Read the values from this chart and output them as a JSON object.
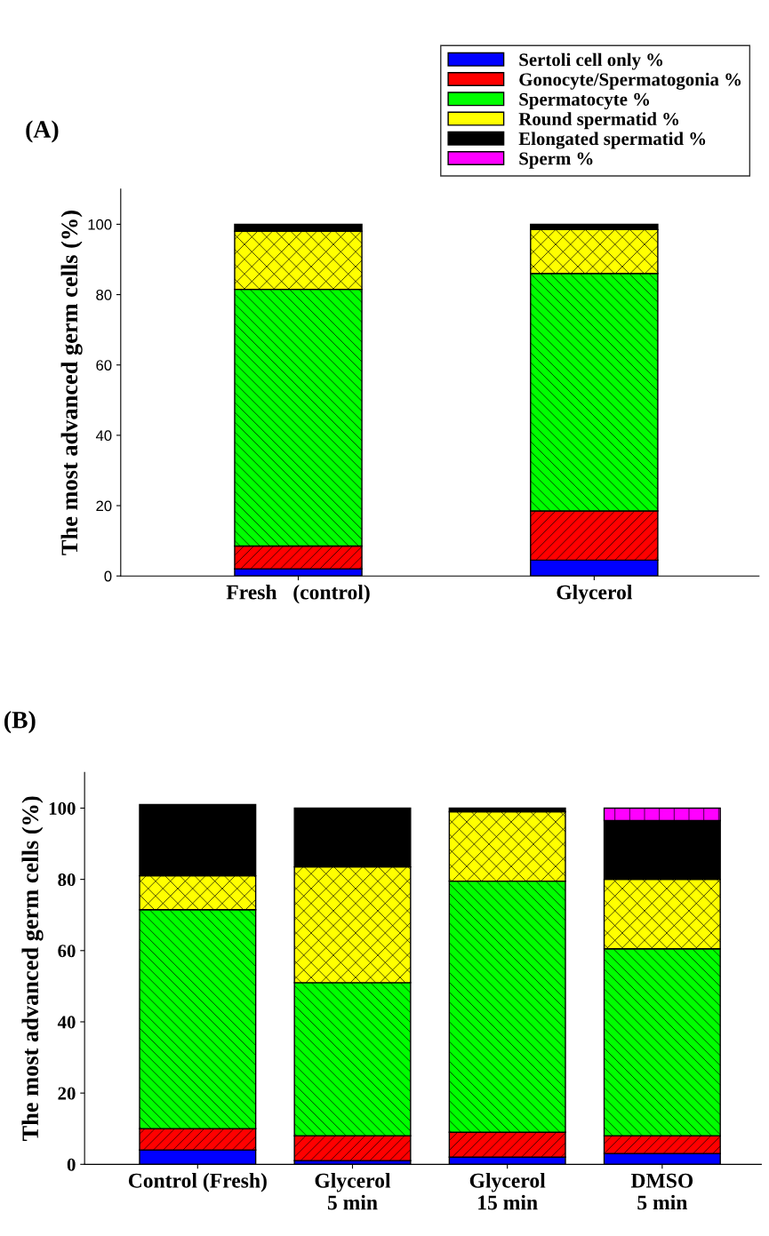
{
  "chart_data": [
    {
      "type": "bar",
      "title": "(A)",
      "ylabel": "The most advanced germ cells (%)",
      "categories": [
        "Fresh   (control)",
        "Glycerol"
      ],
      "stacked": true,
      "ylim": [
        0,
        110
      ],
      "yticks": [
        0,
        20,
        40,
        60,
        80,
        100
      ],
      "legend": "top right",
      "grid": false,
      "series": [
        {
          "name": "Sertoli cell only %",
          "color": "#0000ff",
          "values": [
            2,
            4.5
          ]
        },
        {
          "name": "Gonocyte/Spermatogonia %",
          "color": "#ff0000",
          "values": [
            6.5,
            14
          ]
        },
        {
          "name": "Spermatocyte %",
          "color": "#00ff00",
          "values": [
            73,
            67.5
          ]
        },
        {
          "name": "Round spermatid %",
          "color": "#ffff00",
          "values": [
            16.5,
            12.5
          ]
        },
        {
          "name": "Elongated spermatid %",
          "color": "#000000",
          "values": [
            2,
            1.5
          ]
        },
        {
          "name": "Sperm %",
          "color": "#ff00ff",
          "values": [
            null,
            null
          ]
        }
      ]
    },
    {
      "type": "bar",
      "title": "(B)",
      "ylabel": "The most advanced germ cells (%)",
      "categories": [
        "Control (Fresh)",
        "Glycerol\n5 min",
        "Glycerol\n15 min",
        "DMSO\n5 min"
      ],
      "stacked": true,
      "ylim": [
        0,
        110
      ],
      "yticks": [
        0,
        20,
        40,
        60,
        80,
        100
      ],
      "grid": false,
      "series": [
        {
          "color": "#0000ff",
          "values": [
            4,
            1,
            2,
            3
          ]
        },
        {
          "color": "#ff0000",
          "values": [
            6,
            7,
            7,
            5
          ]
        },
        {
          "color": "#00ff00",
          "values": [
            61.5,
            43,
            70.5,
            52.5
          ]
        },
        {
          "color": "#ffff00",
          "values": [
            9.5,
            32.5,
            19.5,
            19.5
          ]
        },
        {
          "color": "#000000",
          "values": [
            20,
            16.5,
            1,
            16.5
          ]
        },
        {
          "color": "#ff00ff",
          "values": [
            null,
            null,
            null,
            3.5
          ]
        }
      ]
    }
  ]
}
